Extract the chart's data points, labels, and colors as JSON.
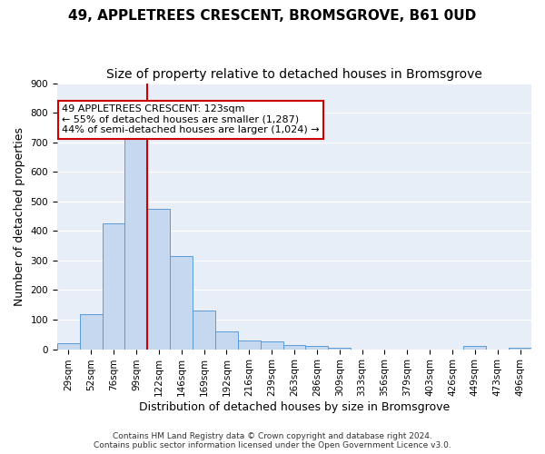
{
  "title": "49, APPLETREES CRESCENT, BROMSGROVE, B61 0UD",
  "subtitle": "Size of property relative to detached houses in Bromsgrove",
  "xlabel": "Distribution of detached houses by size in Bromsgrove",
  "ylabel": "Number of detached properties",
  "bin_labels": [
    "29sqm",
    "52sqm",
    "76sqm",
    "99sqm",
    "122sqm",
    "146sqm",
    "169sqm",
    "192sqm",
    "216sqm",
    "239sqm",
    "263sqm",
    "286sqm",
    "309sqm",
    "333sqm",
    "356sqm",
    "379sqm",
    "403sqm",
    "426sqm",
    "449sqm",
    "473sqm",
    "496sqm"
  ],
  "bar_values": [
    20,
    120,
    425,
    730,
    475,
    315,
    130,
    60,
    30,
    25,
    15,
    10,
    5,
    0,
    0,
    0,
    0,
    0,
    10,
    0,
    5
  ],
  "bar_color": "#c5d8f0",
  "bar_edge_color": "#5b9bd5",
  "vline_x": 4,
  "vline_color": "#cc0000",
  "annotation_text": "49 APPLETREES CRESCENT: 123sqm\n← 55% of detached houses are smaller (1,287)\n44% of semi-detached houses are larger (1,024) →",
  "annotation_box_color": "#ffffff",
  "annotation_box_edge_color": "#cc0000",
  "ylim": [
    0,
    900
  ],
  "yticks": [
    0,
    100,
    200,
    300,
    400,
    500,
    600,
    700,
    800,
    900
  ],
  "background_color": "#e8eef7",
  "grid_color": "#ffffff",
  "footer_text": "Contains HM Land Registry data © Crown copyright and database right 2024.\nContains public sector information licensed under the Open Government Licence v3.0.",
  "title_fontsize": 11,
  "subtitle_fontsize": 10,
  "xlabel_fontsize": 9,
  "ylabel_fontsize": 9,
  "tick_fontsize": 7.5,
  "annotation_fontsize": 8
}
